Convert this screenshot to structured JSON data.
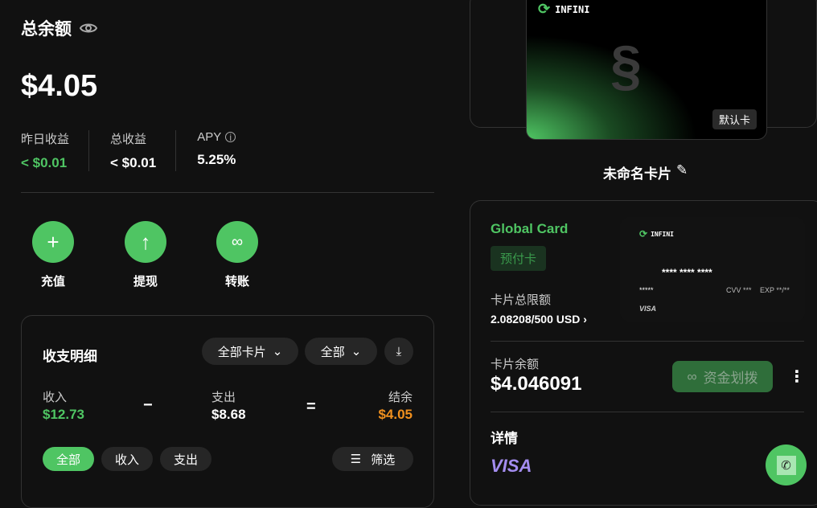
{
  "header": {
    "title": "总余额",
    "eye_icon": "eye-icon",
    "balance": "$4.05"
  },
  "stats": [
    {
      "label": "昨日收益",
      "value": "< $0.01",
      "color": "#4fc563"
    },
    {
      "label": "总收益",
      "value": "< $0.01"
    },
    {
      "label": "APY",
      "value": "5.25%",
      "info_icon": "info-icon"
    }
  ],
  "actions": [
    {
      "label": "充值",
      "icon": "plus-icon"
    },
    {
      "label": "提现",
      "icon": "arrow-up-icon"
    },
    {
      "label": "转账",
      "icon": "link-icon"
    }
  ],
  "transactions": {
    "title": "收支明细",
    "card_filter": "全部卡片",
    "type_filter": "全部",
    "income_label": "收入",
    "income": "$12.73",
    "minus": "−",
    "expense_label": "支出",
    "expense": "$8.68",
    "equals": "=",
    "net_label": "结余",
    "net": "$4.05",
    "tabs": [
      "全部",
      "收入",
      "支出"
    ],
    "filter_label": "筛选"
  },
  "card": {
    "brand": "INFINI",
    "default_badge": "默认卡",
    "name": "未命名卡片"
  },
  "card_detail": {
    "title": "Global Card",
    "type_badge": "预付卡",
    "limit_label": "卡片总限额",
    "limit_value": "2.08208/500 USD",
    "mini_brand": "INFINI",
    "mini_number": "**** **** ****",
    "mini_holder": "*****",
    "mini_cvv": "CVV ***",
    "mini_exp": "EXP **/**",
    "mini_network": "VISA",
    "balance_label": "卡片余额",
    "balance": "$4.046091",
    "transfer_label": "资金划拨",
    "details_label": "详情",
    "network": "VISA"
  },
  "colors": {
    "accent": "#4fc563",
    "orange": "#f0901e",
    "visa": "#a48df0"
  }
}
